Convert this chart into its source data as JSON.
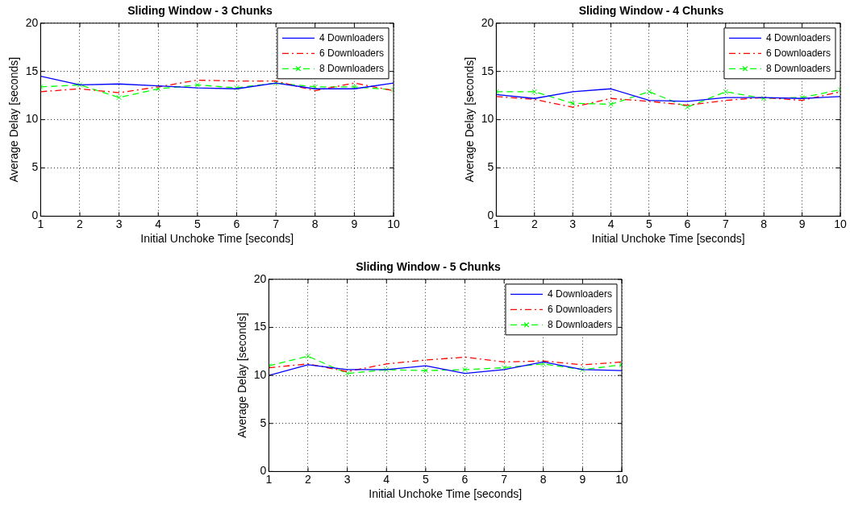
{
  "chart_data": [
    {
      "type": "line",
      "title": "Sliding Window - 3 Chunks",
      "xlabel": "Initial Unchoke Time [seconds]",
      "ylabel": "Average Delay [seconds]",
      "x": [
        1,
        2,
        3,
        4,
        5,
        6,
        7,
        8,
        9,
        10
      ],
      "xlim": [
        1,
        10
      ],
      "xticks": [
        1,
        2,
        3,
        4,
        5,
        6,
        7,
        8,
        9,
        10
      ],
      "ylim": [
        0,
        20
      ],
      "yticks": [
        0,
        5,
        10,
        15,
        20
      ],
      "grid": true,
      "legend": "top right",
      "series": [
        {
          "name": "4 Downloaders",
          "color": "#0000ff",
          "line_style": "solid",
          "marker": "none",
          "values": [
            14.5,
            13.6,
            13.7,
            13.5,
            13.3,
            13.2,
            13.8,
            13.2,
            13.2,
            13.8
          ]
        },
        {
          "name": "6 Downloaders",
          "color": "#ff0000",
          "line_style": "dashdot",
          "marker": "none",
          "values": [
            12.9,
            13.2,
            12.8,
            13.4,
            14.1,
            14.0,
            14.0,
            13.0,
            13.8,
            13.0
          ]
        },
        {
          "name": "8 Downloaders",
          "color": "#00ff00",
          "line_style": "dashed",
          "marker": "cross",
          "values": [
            13.4,
            13.6,
            12.3,
            13.2,
            13.6,
            13.3,
            13.8,
            13.4,
            13.4,
            13.1
          ]
        }
      ]
    },
    {
      "type": "line",
      "title": "Sliding Window - 4 Chunks",
      "xlabel": "Initial Unchoke Time [seconds]",
      "ylabel": "Average Delay [seconds]",
      "x": [
        1,
        2,
        3,
        4,
        5,
        6,
        7,
        8,
        9,
        10
      ],
      "xlim": [
        1,
        10
      ],
      "xticks": [
        1,
        2,
        3,
        4,
        5,
        6,
        7,
        8,
        9,
        10
      ],
      "ylim": [
        0,
        20
      ],
      "yticks": [
        0,
        5,
        10,
        15,
        20
      ],
      "grid": true,
      "legend": "top right",
      "series": [
        {
          "name": "4 Downloaders",
          "color": "#0000ff",
          "line_style": "solid",
          "marker": "none",
          "values": [
            12.6,
            12.2,
            12.9,
            13.2,
            12.0,
            11.9,
            12.3,
            12.3,
            12.2,
            12.4
          ]
        },
        {
          "name": "6 Downloaders",
          "color": "#ff0000",
          "line_style": "dashdot",
          "marker": "none",
          "values": [
            12.4,
            12.1,
            11.3,
            12.2,
            11.9,
            11.5,
            12.0,
            12.3,
            12.0,
            12.9
          ]
        },
        {
          "name": "8 Downloaders",
          "color": "#00ff00",
          "line_style": "dashed",
          "marker": "cross",
          "values": [
            12.9,
            12.9,
            11.7,
            11.6,
            12.9,
            11.3,
            12.9,
            12.2,
            12.3,
            13.1
          ]
        }
      ]
    },
    {
      "type": "line",
      "title": "Sliding Window - 5 Chunks",
      "xlabel": "Initial Unchoke Time [seconds]",
      "ylabel": "Average Delay [seconds]",
      "x": [
        1,
        2,
        3,
        4,
        5,
        6,
        7,
        8,
        9,
        10
      ],
      "xlim": [
        1,
        10
      ],
      "xticks": [
        1,
        2,
        3,
        4,
        5,
        6,
        7,
        8,
        9,
        10
      ],
      "ylim": [
        0,
        20
      ],
      "yticks": [
        0,
        5,
        10,
        15,
        20
      ],
      "grid": true,
      "legend": "top right",
      "series": [
        {
          "name": "4 Downloaders",
          "color": "#0000ff",
          "line_style": "solid",
          "marker": "none",
          "values": [
            10.0,
            11.1,
            10.6,
            10.6,
            11.0,
            10.2,
            10.6,
            11.4,
            10.6,
            10.5
          ]
        },
        {
          "name": "6 Downloaders",
          "color": "#ff0000",
          "line_style": "dashdot",
          "marker": "none",
          "values": [
            10.8,
            11.2,
            10.4,
            11.2,
            11.6,
            11.9,
            11.4,
            11.5,
            11.1,
            11.4
          ]
        },
        {
          "name": "8 Downloaders",
          "color": "#00ff00",
          "line_style": "dashed",
          "marker": "cross",
          "values": [
            11.0,
            12.0,
            10.2,
            10.6,
            10.5,
            10.6,
            10.8,
            11.2,
            10.6,
            11.1
          ]
        }
      ]
    }
  ]
}
